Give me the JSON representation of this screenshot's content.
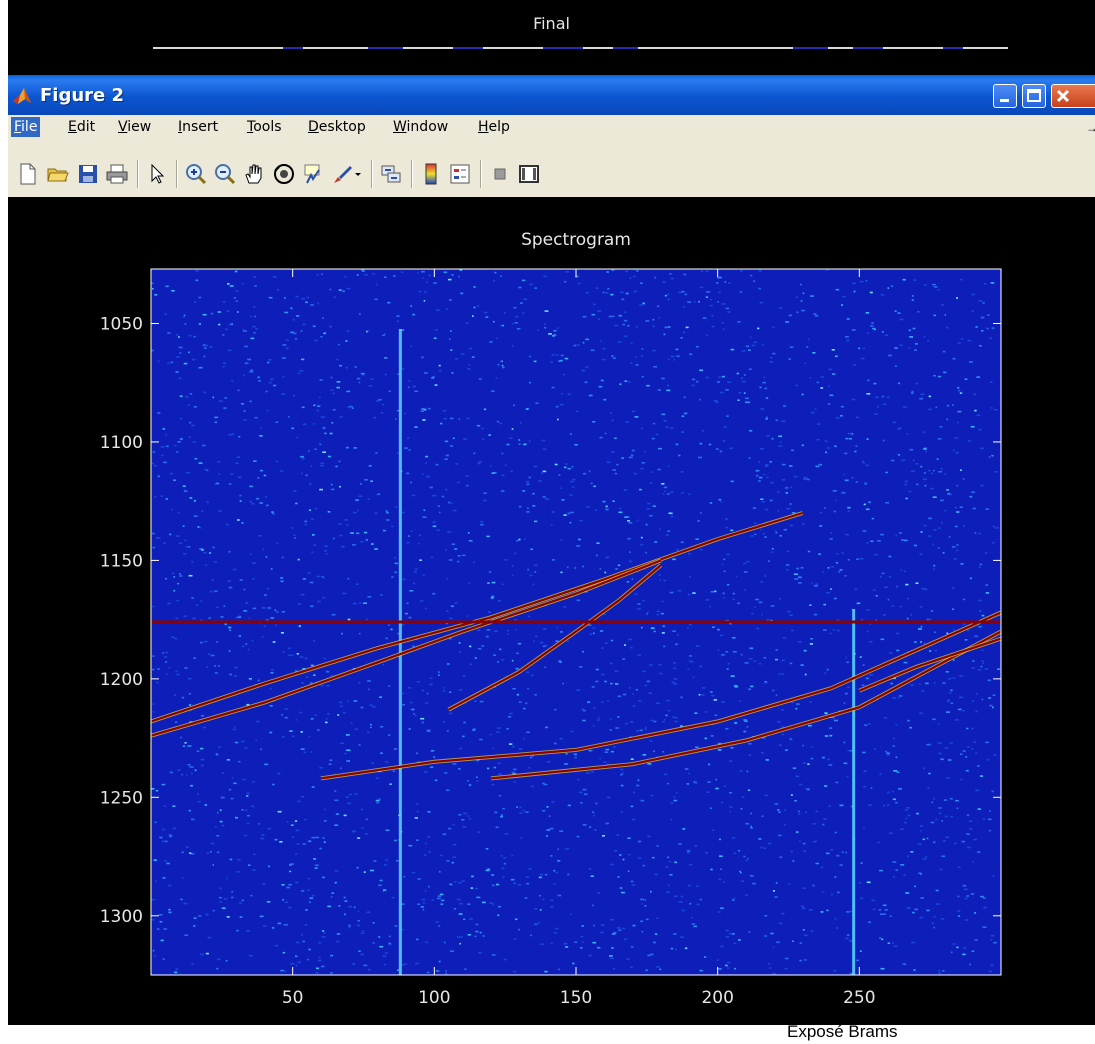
{
  "background_figure": {
    "title": "Final"
  },
  "window": {
    "title": "Figure 2",
    "controls": {
      "minimize": "minimize",
      "maximize": "maximize",
      "close": "close"
    }
  },
  "menu": [
    {
      "key": "F",
      "rest": "ile",
      "name": "menu-file"
    },
    {
      "key": "E",
      "rest": "dit",
      "name": "menu-edit"
    },
    {
      "key": "V",
      "rest": "iew",
      "name": "menu-view"
    },
    {
      "key": "I",
      "rest": "nsert",
      "name": "menu-insert"
    },
    {
      "key": "T",
      "rest": "ools",
      "name": "menu-tools"
    },
    {
      "key": "D",
      "rest": "esktop",
      "name": "menu-desktop"
    },
    {
      "key": "W",
      "rest": "indow",
      "name": "menu-window"
    },
    {
      "key": "H",
      "rest": "elp",
      "name": "menu-help"
    }
  ],
  "toolbar_icons": [
    "new-file-icon",
    "open-folder-icon",
    "save-icon",
    "print-icon",
    "pointer-icon",
    "zoom-in-icon",
    "zoom-out-icon",
    "pan-hand-icon",
    "rotate-3d-icon",
    "data-cursor-icon",
    "brush-icon",
    "link-plot-icon",
    "colorbar-icon",
    "legend-icon",
    "hide-plot-tools-icon",
    "show-plot-tools-icon"
  ],
  "colors": {
    "titlebar": "#0c55d0",
    "plot_bg": "#0d1fb8",
    "trace": "#8b0000",
    "noise_high": "#33d6ff"
  },
  "chart_data": {
    "type": "heatmap",
    "title": "Spectrogram",
    "xlabel": "",
    "ylabel": "",
    "xlim": [
      0,
      300
    ],
    "ylim": [
      1325,
      1027
    ],
    "x_ticks": [
      50,
      100,
      150,
      200,
      250
    ],
    "y_ticks": [
      1050,
      1100,
      1150,
      1200,
      1250,
      1300
    ],
    "horizontal_line_y": 1176,
    "vertical_lines_x": [
      88,
      248
    ],
    "traces": [
      {
        "points": [
          [
            0,
            1218
          ],
          [
            40,
            1202
          ],
          [
            80,
            1187
          ],
          [
            120,
            1174
          ],
          [
            160,
            1158
          ],
          [
            200,
            1141
          ],
          [
            230,
            1130
          ]
        ]
      },
      {
        "points": [
          [
            0,
            1224
          ],
          [
            40,
            1210
          ],
          [
            80,
            1193
          ],
          [
            110,
            1180
          ],
          [
            150,
            1164
          ],
          [
            180,
            1150
          ]
        ]
      },
      {
        "points": [
          [
            105,
            1213
          ],
          [
            130,
            1197
          ],
          [
            150,
            1180
          ],
          [
            165,
            1167
          ],
          [
            180,
            1152
          ]
        ]
      },
      {
        "points": [
          [
            60,
            1242
          ],
          [
            100,
            1235
          ],
          [
            150,
            1230
          ],
          [
            200,
            1218
          ],
          [
            240,
            1204
          ],
          [
            300,
            1172
          ]
        ]
      },
      {
        "points": [
          [
            120,
            1242
          ],
          [
            170,
            1236
          ],
          [
            210,
            1226
          ],
          [
            250,
            1212
          ],
          [
            300,
            1180
          ]
        ]
      },
      {
        "points": [
          [
            250,
            1205
          ],
          [
            270,
            1195
          ],
          [
            300,
            1183
          ]
        ]
      }
    ]
  },
  "caption": "Exposé Brams"
}
